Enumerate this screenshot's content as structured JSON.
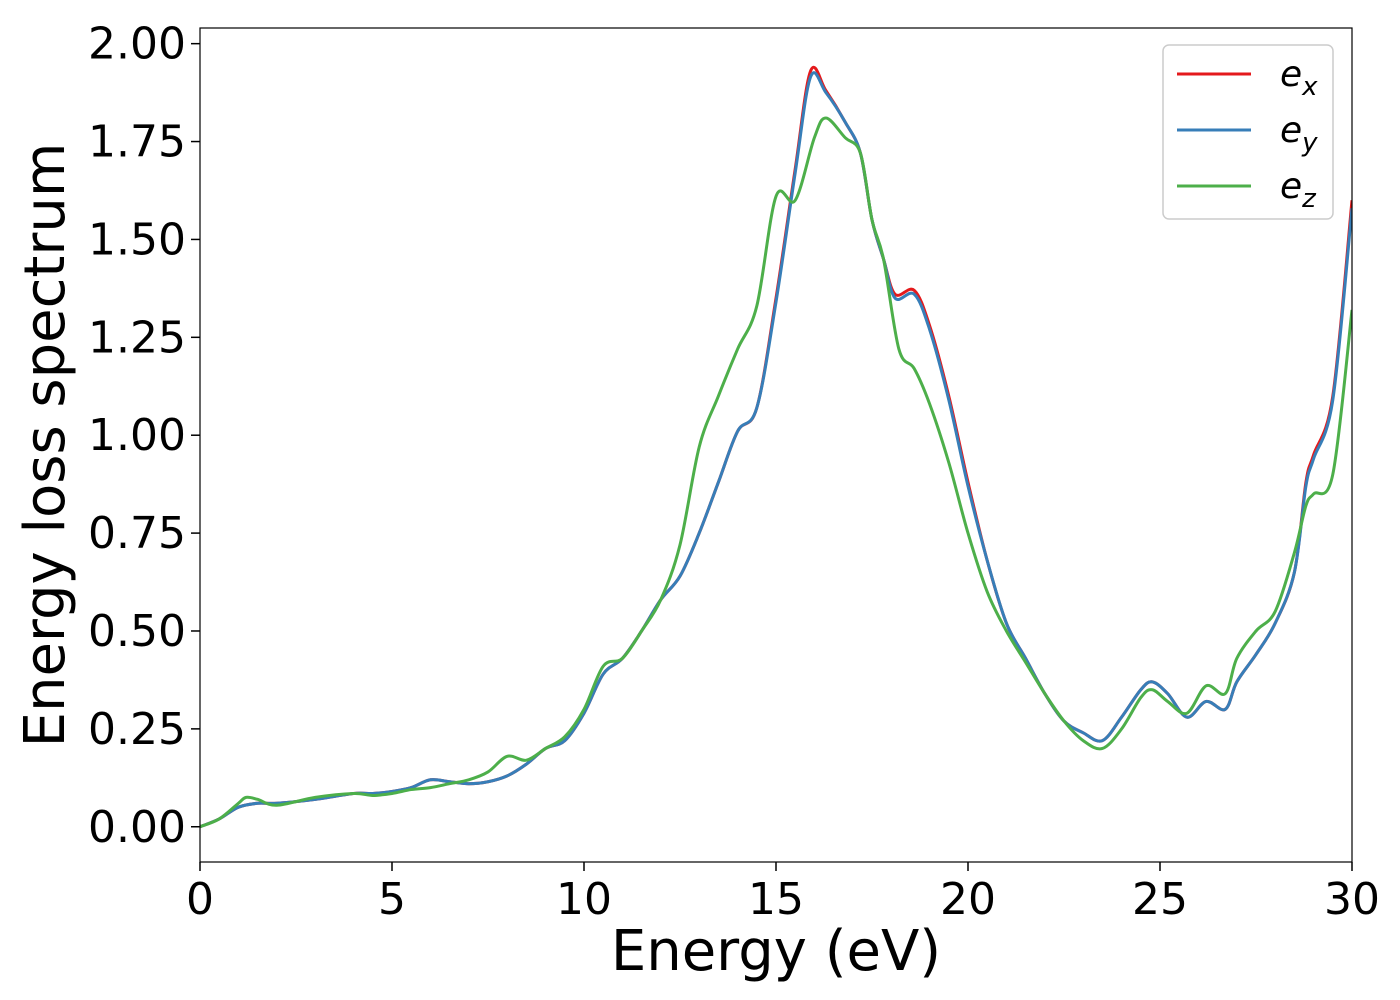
{
  "chart_data": {
    "type": "line",
    "xlabel": "Energy (eV)",
    "ylabel": "Energy loss spectrum",
    "xlim": [
      0,
      30
    ],
    "ylim": [
      -0.09,
      2.04
    ],
    "x_ticks": [
      0,
      5,
      10,
      15,
      20,
      25,
      30
    ],
    "x_tick_labels": [
      "0",
      "5",
      "10",
      "15",
      "20",
      "25",
      "30"
    ],
    "y_ticks": [
      0.0,
      0.25,
      0.5,
      0.75,
      1.0,
      1.25,
      1.5,
      1.75,
      2.0
    ],
    "y_tick_labels": [
      "0.00",
      "0.25",
      "0.50",
      "0.75",
      "1.00",
      "1.25",
      "1.50",
      "1.75",
      "2.00"
    ],
    "grid": false,
    "legend_position": "top-right",
    "series": [
      {
        "name": "e_x",
        "label_base": "e",
        "label_sub": "x",
        "color": "#e41a1c",
        "x": [
          0,
          0.5,
          1,
          1.5,
          2,
          3,
          4,
          4.5,
          5,
          5.5,
          6,
          6.5,
          7,
          7.5,
          8,
          8.5,
          9,
          9.5,
          10,
          10.5,
          11,
          11.5,
          12,
          12.5,
          13,
          13.5,
          14,
          14.5,
          15,
          15.5,
          15.9,
          16.3,
          16.8,
          17.2,
          17.5,
          17.8,
          18.1,
          18.6,
          19,
          19.5,
          20,
          20.5,
          21,
          21.5,
          22,
          22.5,
          23,
          23.5,
          24,
          24.5,
          24.8,
          25.2,
          25.7,
          26.2,
          26.7,
          27,
          27.5,
          28,
          28.5,
          28.8,
          29,
          29.5,
          30
        ],
        "y": [
          0,
          0.02,
          0.05,
          0.06,
          0.06,
          0.07,
          0.085,
          0.085,
          0.09,
          0.1,
          0.12,
          0.115,
          0.11,
          0.115,
          0.13,
          0.16,
          0.2,
          0.22,
          0.29,
          0.39,
          0.43,
          0.5,
          0.58,
          0.64,
          0.75,
          0.88,
          1.01,
          1.07,
          1.35,
          1.68,
          1.93,
          1.88,
          1.8,
          1.72,
          1.55,
          1.45,
          1.36,
          1.37,
          1.28,
          1.1,
          0.88,
          0.68,
          0.52,
          0.43,
          0.34,
          0.27,
          0.24,
          0.22,
          0.28,
          0.35,
          0.37,
          0.34,
          0.28,
          0.32,
          0.3,
          0.37,
          0.44,
          0.52,
          0.65,
          0.88,
          0.95,
          1.1,
          1.6
        ]
      },
      {
        "name": "e_y",
        "label_base": "e",
        "label_sub": "y",
        "color": "#377eb8",
        "x": [
          0,
          0.5,
          1,
          1.5,
          2,
          3,
          4,
          4.5,
          5,
          5.5,
          6,
          6.5,
          7,
          7.5,
          8,
          8.5,
          9,
          9.5,
          10,
          10.5,
          11,
          11.5,
          12,
          12.5,
          13,
          13.5,
          14,
          14.5,
          15,
          15.5,
          15.9,
          16.3,
          16.8,
          17.2,
          17.5,
          17.8,
          18.1,
          18.6,
          19,
          19.5,
          20,
          20.5,
          21,
          21.5,
          22,
          22.5,
          23,
          23.5,
          24,
          24.5,
          24.8,
          25.2,
          25.7,
          26.2,
          26.7,
          27,
          27.5,
          28,
          28.5,
          28.8,
          29,
          29.5,
          30
        ],
        "y": [
          0,
          0.02,
          0.05,
          0.06,
          0.06,
          0.07,
          0.085,
          0.085,
          0.09,
          0.1,
          0.12,
          0.115,
          0.11,
          0.115,
          0.13,
          0.16,
          0.2,
          0.22,
          0.29,
          0.39,
          0.43,
          0.5,
          0.58,
          0.64,
          0.75,
          0.88,
          1.01,
          1.07,
          1.34,
          1.67,
          1.915,
          1.875,
          1.8,
          1.72,
          1.55,
          1.45,
          1.35,
          1.36,
          1.27,
          1.09,
          0.87,
          0.68,
          0.52,
          0.43,
          0.34,
          0.27,
          0.24,
          0.22,
          0.28,
          0.35,
          0.37,
          0.34,
          0.28,
          0.32,
          0.3,
          0.37,
          0.44,
          0.52,
          0.65,
          0.87,
          0.94,
          1.09,
          1.58
        ]
      },
      {
        "name": "e_z",
        "label_base": "e",
        "label_sub": "z",
        "color": "#4daf4a",
        "x": [
          0,
          0.5,
          1,
          1.2,
          1.5,
          2,
          3,
          4,
          4.5,
          5,
          5.5,
          6,
          6.5,
          7,
          7.5,
          8,
          8.5,
          9,
          9.5,
          10,
          10.5,
          11,
          11.5,
          12,
          12.5,
          13,
          13.5,
          14,
          14.5,
          15,
          15.5,
          16,
          16.3,
          16.8,
          17.2,
          17.5,
          17.8,
          18.2,
          18.6,
          19,
          19.5,
          20,
          20.5,
          21,
          21.5,
          22,
          22.5,
          23,
          23.5,
          24,
          24.5,
          24.8,
          25.2,
          25.7,
          26.2,
          26.7,
          27,
          27.5,
          28,
          28.5,
          28.8,
          29,
          29.5,
          30
        ],
        "y": [
          0,
          0.02,
          0.06,
          0.075,
          0.07,
          0.055,
          0.075,
          0.085,
          0.08,
          0.085,
          0.095,
          0.1,
          0.11,
          0.12,
          0.14,
          0.18,
          0.17,
          0.2,
          0.23,
          0.3,
          0.41,
          0.43,
          0.5,
          0.58,
          0.72,
          0.97,
          1.1,
          1.22,
          1.33,
          1.61,
          1.6,
          1.76,
          1.81,
          1.76,
          1.72,
          1.55,
          1.45,
          1.22,
          1.17,
          1.08,
          0.93,
          0.75,
          0.6,
          0.5,
          0.42,
          0.34,
          0.27,
          0.22,
          0.2,
          0.25,
          0.33,
          0.35,
          0.32,
          0.29,
          0.36,
          0.34,
          0.43,
          0.5,
          0.55,
          0.7,
          0.82,
          0.85,
          0.9,
          1.32
        ]
      }
    ]
  }
}
